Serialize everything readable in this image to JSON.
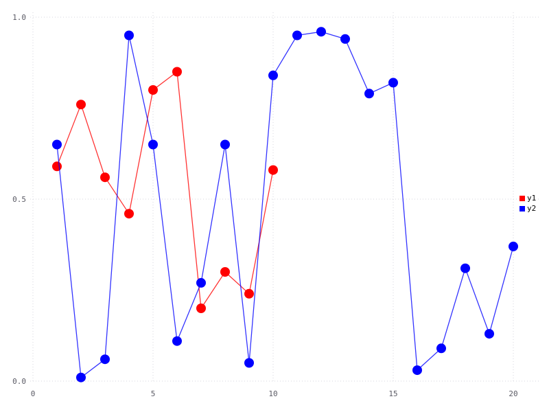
{
  "chart_data": {
    "type": "line",
    "title": "",
    "xlabel": "",
    "ylabel": "",
    "xlim": [
      0,
      21
    ],
    "ylim": [
      0,
      1.0
    ],
    "grid": "dotted",
    "legend_position": "right-center",
    "x_ticks": [
      {
        "value": 0,
        "label": "0"
      },
      {
        "value": 5,
        "label": "5"
      },
      {
        "value": 10,
        "label": "10"
      },
      {
        "value": 15,
        "label": "15"
      },
      {
        "value": 20,
        "label": "20"
      }
    ],
    "y_ticks": [
      {
        "value": 0.0,
        "label": "0.0"
      },
      {
        "value": 0.5,
        "label": "0.5"
      },
      {
        "value": 1.0,
        "label": "1.0"
      }
    ],
    "series": [
      {
        "name": "y1",
        "color": "#ff0000",
        "x": [
          1,
          2,
          3,
          4,
          5,
          6,
          7,
          8,
          9,
          10
        ],
        "y": [
          0.59,
          0.76,
          0.56,
          0.46,
          0.8,
          0.85,
          0.2,
          0.3,
          0.24,
          0.58
        ]
      },
      {
        "name": "y2",
        "color": "#0000ff",
        "x": [
          1,
          2,
          3,
          4,
          5,
          6,
          7,
          8,
          9,
          10,
          11,
          12,
          13,
          14,
          15,
          16,
          17,
          18,
          19,
          20
        ],
        "y": [
          0.65,
          0.01,
          0.06,
          0.95,
          0.65,
          0.11,
          0.27,
          0.65,
          0.05,
          0.84,
          0.95,
          0.96,
          0.94,
          0.79,
          0.82,
          0.03,
          0.09,
          0.31,
          0.13,
          0.37
        ]
      }
    ]
  },
  "style": {
    "grid_color": "#d4d4de",
    "tick_label_color": "#5a5a64",
    "background_color": "#ffffff"
  }
}
